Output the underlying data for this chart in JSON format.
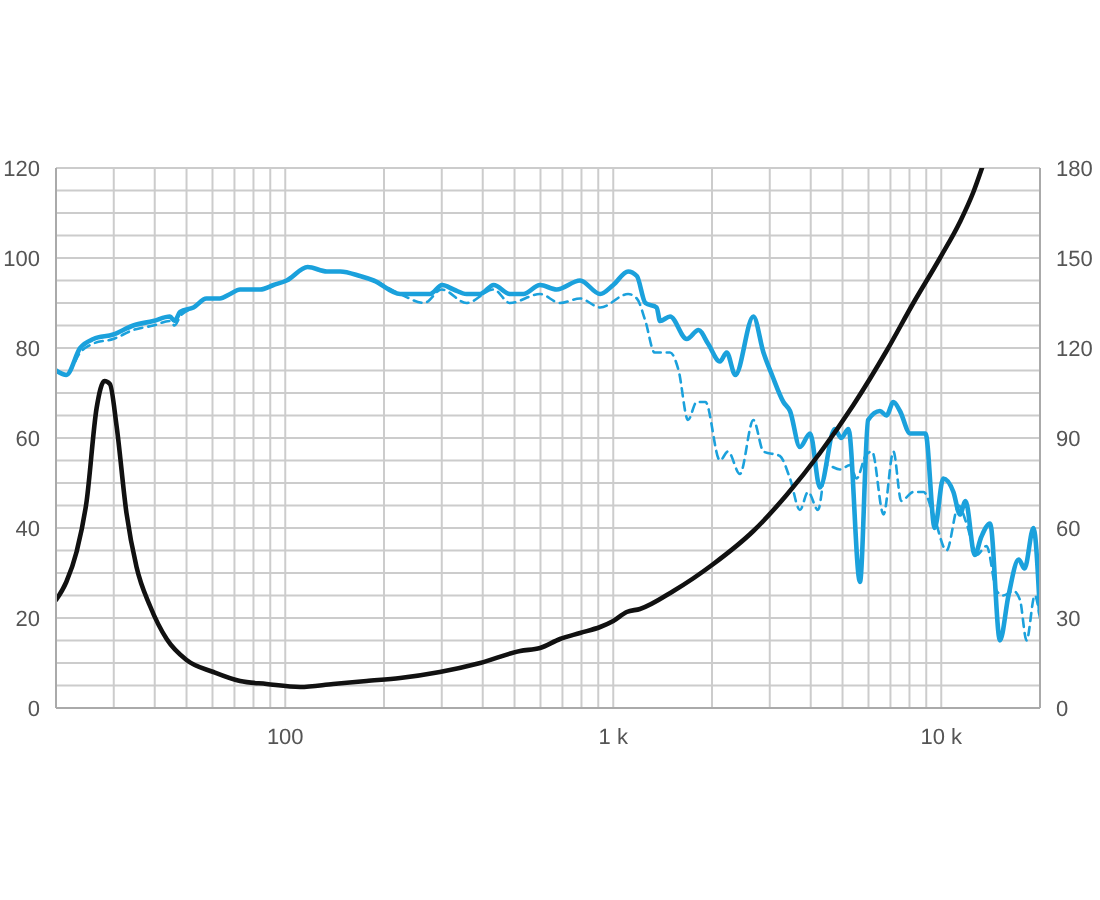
{
  "chart_data": {
    "type": "line",
    "log": "x",
    "grid": true,
    "marker": "none",
    "xlim": [
      20,
      20000
    ],
    "xticks": [
      {
        "value": 30,
        "label": null
      },
      {
        "value": 40,
        "label": null
      },
      {
        "value": 50,
        "label": null
      },
      {
        "value": 60,
        "label": null
      },
      {
        "value": 70,
        "label": null
      },
      {
        "value": 80,
        "label": null
      },
      {
        "value": 90,
        "label": null
      },
      100,
      {
        "value": 200,
        "label": null
      },
      {
        "value": 300,
        "label": null
      },
      {
        "value": 400,
        "label": null
      },
      {
        "value": 500,
        "label": null
      },
      {
        "value": 600,
        "label": null
      },
      {
        "value": 700,
        "label": null
      },
      {
        "value": 800,
        "label": null
      },
      {
        "value": 900,
        "label": null
      },
      {
        "value": 1000,
        "label": "1 k"
      },
      {
        "value": 2000,
        "label": null
      },
      {
        "value": 3000,
        "label": null
      },
      {
        "value": 4000,
        "label": null
      },
      {
        "value": 5000,
        "label": null
      },
      {
        "value": 6000,
        "label": null
      },
      {
        "value": 7000,
        "label": null
      },
      {
        "value": 8000,
        "label": null
      },
      {
        "value": 9000,
        "label": null
      },
      {
        "value": 10000,
        "label": "10 k"
      }
    ],
    "ylim": [
      0,
      120
    ],
    "yticks": [
      0,
      {
        "value": 5,
        "label": null
      },
      {
        "value": 10,
        "label": null
      },
      {
        "value": 15,
        "label": null
      },
      20,
      {
        "value": 25,
        "label": null
      },
      {
        "value": 30,
        "label": null
      },
      {
        "value": 35,
        "label": null
      },
      40,
      {
        "value": 45,
        "label": null
      },
      {
        "value": 50,
        "label": null
      },
      {
        "value": 55,
        "label": null
      },
      60,
      {
        "value": 65,
        "label": null
      },
      {
        "value": 70,
        "label": null
      },
      {
        "value": 75,
        "label": null
      },
      80,
      {
        "value": 85,
        "label": null
      },
      {
        "value": 90,
        "label": null
      },
      {
        "value": 95,
        "label": null
      },
      100,
      {
        "value": 105,
        "label": null
      },
      {
        "value": 110,
        "label": null
      },
      {
        "value": 115,
        "label": null
      },
      120
    ],
    "y2lim": [
      0,
      180
    ],
    "y2ticks": [
      0,
      30,
      60,
      90,
      120,
      150,
      180
    ],
    "series": [
      {
        "color": "#1ba1dc",
        "line_style": "solid",
        "x": [
          20,
          21.5,
          23.7,
          26,
          29.9,
          34.4,
          39.6,
          44.5,
          46,
          47.8,
          52.5,
          57.5,
          63.2,
          67.9,
          72.8,
          83.8,
          92.1,
          101,
          117,
          134,
          147,
          169,
          186,
          224,
          251,
          276,
          301,
          326,
          357,
          393,
          432,
          484,
          532,
          598,
          672,
          792,
          912,
          1000,
          1110,
          1180,
          1253,
          1356,
          1389,
          1490,
          1675,
          1820,
          1944,
          2115,
          2217,
          2356,
          2674,
          2870,
          3048,
          3302,
          3458,
          3708,
          3982,
          4268,
          4732,
          4956,
          5212,
          5650,
          5984,
          6504,
          6808,
          7146,
          7482,
          8036,
          8954,
          9550,
          10140,
          10890,
          11400,
          11860,
          12650,
          13240,
          14090,
          15100,
          16030,
          17220,
          17950,
          19100,
          20000
        ],
        "values": [
          75,
          74,
          80,
          82,
          83,
          85,
          86,
          87,
          86,
          88,
          89,
          91,
          91,
          92,
          93,
          93,
          94,
          95,
          98,
          97,
          97,
          96,
          95,
          92,
          92,
          92,
          94,
          93,
          92,
          92,
          94,
          92,
          92,
          94,
          93,
          95,
          92,
          94,
          97,
          96,
          90,
          89,
          86,
          87,
          82,
          84,
          81,
          77,
          79,
          74,
          87,
          79,
          74,
          68,
          66,
          58,
          61,
          49,
          62,
          60,
          62,
          28,
          64,
          66,
          65,
          68,
          66,
          61,
          61,
          40,
          51,
          48,
          43,
          46,
          34,
          38,
          41,
          15,
          25,
          33,
          31,
          40,
          21
        ]
      },
      {
        "color": "#1ba1dc",
        "line_style": "dashed",
        "x": [
          20,
          21.5,
          23.7,
          26,
          29.9,
          34.4,
          39.6,
          44.5,
          46,
          47.8,
          52.5,
          57.5,
          63.2,
          67.9,
          72.8,
          83.8,
          92.1,
          101,
          117,
          134,
          147,
          169,
          186,
          224,
          265,
          300,
          357,
          432,
          484,
          598,
          688,
          792,
          912,
          1110,
          1180,
          1253,
          1337,
          1490,
          1582,
          1690,
          1796,
          1910,
          2115,
          2238,
          2433,
          2674,
          2870,
          3222,
          3458,
          3708,
          3926,
          4210,
          4470,
          4910,
          5272,
          5520,
          5876,
          6152,
          6668,
          7146,
          7552,
          8222,
          8832,
          9464,
          10380,
          11300,
          11940,
          12820,
          13740,
          14760,
          15460,
          16600,
          17380,
          18200,
          19280,
          20000
        ],
        "values": [
          75,
          74,
          79,
          81,
          82,
          84,
          85,
          86,
          85,
          87,
          89,
          91,
          91,
          92,
          93,
          93,
          94,
          95,
          98,
          97,
          97,
          96,
          95,
          92,
          90,
          93,
          90,
          93,
          90,
          92,
          90,
          91,
          89,
          92,
          91,
          86,
          79,
          79,
          75,
          64,
          68,
          68,
          55,
          57,
          52,
          64,
          57,
          56,
          51,
          44,
          48,
          44,
          54,
          53,
          54,
          51,
          56,
          57,
          43,
          57,
          46,
          48,
          48,
          43,
          35,
          45,
          41,
          34,
          36,
          26,
          25,
          26,
          24,
          15,
          25,
          20
        ]
      },
      {
        "color": "#111111",
        "line_style": "solid",
        "axis": "y2",
        "x": [
          20,
          21.5,
          23.1,
          24.8,
          26.6,
          28.1,
          29.2,
          30.6,
          32.8,
          35.2,
          38.7,
          43.5,
          50,
          60.4,
          72.8,
          87.7,
          111,
          140,
          177,
          224,
          296,
          393,
          520,
          598,
          688,
          792,
          912,
          1000,
          1099,
          1206,
          1526,
          2019,
          2674,
          3376,
          4268,
          5396,
          6808,
          8222,
          9910,
          11400,
          12530,
          13310
        ],
        "values": [
          36,
          42,
          52,
          69,
          100,
          109,
          108,
          94,
          65,
          47,
          34,
          23,
          16,
          12,
          9,
          8,
          7,
          8,
          9,
          10,
          12,
          15,
          19,
          20,
          23,
          25,
          27,
          29,
          32,
          33,
          39,
          48,
          59,
          71,
          85,
          101,
          119,
          135,
          150,
          162,
          172,
          180
        ]
      }
    ]
  }
}
